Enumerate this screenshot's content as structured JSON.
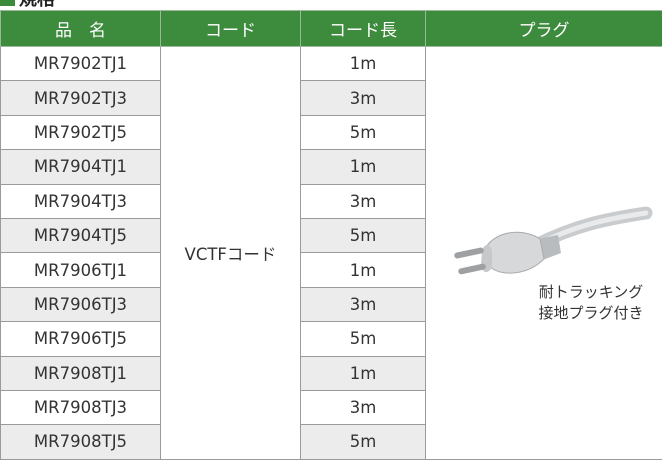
{
  "heading": "規格",
  "table": {
    "headers": [
      "品　名",
      "コード",
      "コード長",
      "プラグ"
    ],
    "rows": [
      [
        "MR7902TJ1",
        "1m"
      ],
      [
        "MR7902TJ3",
        "3m"
      ],
      [
        "MR7902TJ5",
        "5m"
      ],
      [
        "MR7904TJ1",
        "1m"
      ],
      [
        "MR7904TJ3",
        "3m"
      ],
      [
        "MR7904TJ5",
        "5m"
      ],
      [
        "MR7906TJ1",
        "1m"
      ],
      [
        "MR7906TJ3",
        "3m"
      ],
      [
        "MR7906TJ5",
        "5m"
      ],
      [
        "MR7908TJ1",
        "1m"
      ],
      [
        "MR7908TJ3",
        "3m"
      ],
      [
        "MR7908TJ5",
        "5m"
      ]
    ],
    "cord": "VCTFコード",
    "plug_note": [
      "耐トラッキング",
      "接地プラグ付き"
    ]
  }
}
